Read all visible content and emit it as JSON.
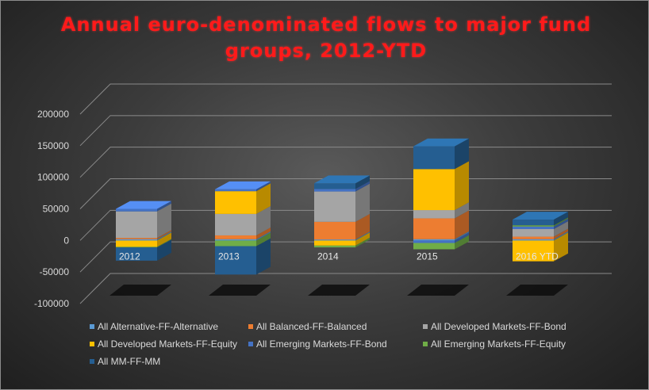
{
  "chart_data": {
    "type": "bar",
    "stacked": true,
    "three_d": true,
    "title": "Annual euro-denominated flows to major fund groups, 2012-YTD",
    "categories": [
      "2012",
      "2013",
      "2014",
      "2015",
      "2016 YTD"
    ],
    "ylim": [
      -100000,
      200000
    ],
    "yticks": [
      200000,
      150000,
      100000,
      50000,
      0,
      -50000,
      -100000
    ],
    "grid": true,
    "legend_position": "bottom",
    "series": [
      {
        "name": "All Alternative-FF-Alternative",
        "color": "#5b9bd5",
        "values": [
          2000,
          2000,
          1500,
          2000,
          2000
        ]
      },
      {
        "name": "All Balanced-FF-Balanced",
        "color": "#ed7d31",
        "values": [
          2000,
          6000,
          28000,
          33000,
          4000
        ]
      },
      {
        "name": "All Developed Markets-FF-Bond",
        "color": "#a5a5a5",
        "values": [
          42000,
          34000,
          48000,
          13000,
          12000
        ]
      },
      {
        "name": "All Developed Markets-FF-Equity",
        "color": "#ffc000",
        "values": [
          -10000,
          36000,
          -8000,
          65000,
          -33000
        ]
      },
      {
        "name": "All Emerging Markets-FF-Bond",
        "color": "#4472c4",
        "values": [
          4000,
          3000,
          4000,
          -4000,
          4000
        ]
      },
      {
        "name": "All Emerging Markets-FF-Equity",
        "color": "#70ad47",
        "values": [
          -1000,
          -9000,
          -3000,
          -10000,
          2000
        ]
      },
      {
        "name": "All MM-FF-MM",
        "color": "#255e91",
        "values": [
          -21000,
          -45000,
          9000,
          36000,
          9000
        ]
      }
    ]
  }
}
